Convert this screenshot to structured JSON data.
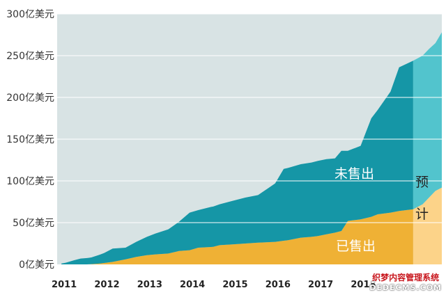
{
  "chart_data": {
    "type": "area",
    "stacked": true,
    "title": "",
    "xlabel": "",
    "ylabel": "",
    "y_unit_suffix": "亿美元",
    "ylim": [
      0,
      300
    ],
    "yticks": [
      0,
      50,
      100,
      150,
      200,
      250,
      300
    ],
    "xlim": [
      2010.9,
      2019.9
    ],
    "xticks": [
      "2011",
      "2012",
      "2013",
      "2014",
      "2015",
      "2016",
      "2017",
      "2018"
    ],
    "grid": "horizontal",
    "forecast_from": 2019.23,
    "series": [
      {
        "name": "已售出",
        "color": "#EFB135",
        "forecast_color": "#FCD389",
        "points": [
          [
            2011.0,
            0
          ],
          [
            2011.3,
            0
          ],
          [
            2011.6,
            0
          ],
          [
            2011.9,
            1
          ],
          [
            2012.2,
            3
          ],
          [
            2012.5,
            6
          ],
          [
            2012.75,
            9
          ],
          [
            2013.0,
            11
          ],
          [
            2013.2,
            12
          ],
          [
            2013.5,
            13
          ],
          [
            2013.75,
            16
          ],
          [
            2014.0,
            17
          ],
          [
            2014.2,
            20
          ],
          [
            2014.55,
            21
          ],
          [
            2014.7,
            23
          ],
          [
            2015.0,
            24
          ],
          [
            2015.3,
            25
          ],
          [
            2015.6,
            26
          ],
          [
            2016.0,
            27
          ],
          [
            2016.3,
            29
          ],
          [
            2016.6,
            32
          ],
          [
            2016.85,
            33
          ],
          [
            2017.0,
            34
          ],
          [
            2017.2,
            36
          ],
          [
            2017.4,
            38
          ],
          [
            2017.55,
            40
          ],
          [
            2017.7,
            52
          ],
          [
            2018.0,
            54
          ],
          [
            2018.25,
            57
          ],
          [
            2018.4,
            60
          ],
          [
            2018.7,
            62
          ],
          [
            2018.9,
            64
          ],
          [
            2019.23,
            66
          ],
          [
            2019.45,
            72
          ],
          [
            2019.6,
            80
          ],
          [
            2019.75,
            88
          ],
          [
            2019.9,
            92
          ]
        ]
      },
      {
        "name": "未售出",
        "color": "#1596A6",
        "forecast_color": "#52C4CD",
        "points": [
          [
            2011.0,
            1
          ],
          [
            2011.1,
            2
          ],
          [
            2011.3,
            5
          ],
          [
            2011.45,
            7
          ],
          [
            2011.7,
            8
          ],
          [
            2011.85,
            10
          ],
          [
            2012.0,
            12
          ],
          [
            2012.2,
            16
          ],
          [
            2012.5,
            14
          ],
          [
            2012.75,
            18
          ],
          [
            2013.0,
            22
          ],
          [
            2013.2,
            25
          ],
          [
            2013.5,
            29
          ],
          [
            2013.75,
            35
          ],
          [
            2014.0,
            45
          ],
          [
            2014.2,
            45
          ],
          [
            2014.5,
            48
          ],
          [
            2014.7,
            49
          ],
          [
            2015.0,
            52
          ],
          [
            2015.3,
            55
          ],
          [
            2015.6,
            57
          ],
          [
            2016.0,
            70
          ],
          [
            2016.2,
            86
          ],
          [
            2016.6,
            88
          ],
          [
            2016.85,
            89
          ],
          [
            2017.0,
            90
          ],
          [
            2017.2,
            90
          ],
          [
            2017.4,
            89
          ],
          [
            2017.55,
            96
          ],
          [
            2017.7,
            84
          ],
          [
            2018.0,
            88
          ],
          [
            2018.25,
            118
          ],
          [
            2018.4,
            125
          ],
          [
            2018.7,
            145
          ],
          [
            2018.9,
            172
          ],
          [
            2019.23,
            178
          ],
          [
            2019.45,
            178
          ],
          [
            2019.6,
            178
          ],
          [
            2019.75,
            177
          ],
          [
            2019.9,
            186
          ]
        ]
      }
    ],
    "labels": {
      "unsold": "未售出",
      "sold": "已售出",
      "forecast_1": "预",
      "forecast_2": "计"
    },
    "colors": {
      "background": "#D8E3E4",
      "gridline": "#FFFFFF",
      "label_on_color": "#FFFFFF",
      "label_forecast": "#222222"
    }
  },
  "watermark": {
    "line1": "织梦内容管理系统",
    "line2": "DEDECMS.COM"
  }
}
